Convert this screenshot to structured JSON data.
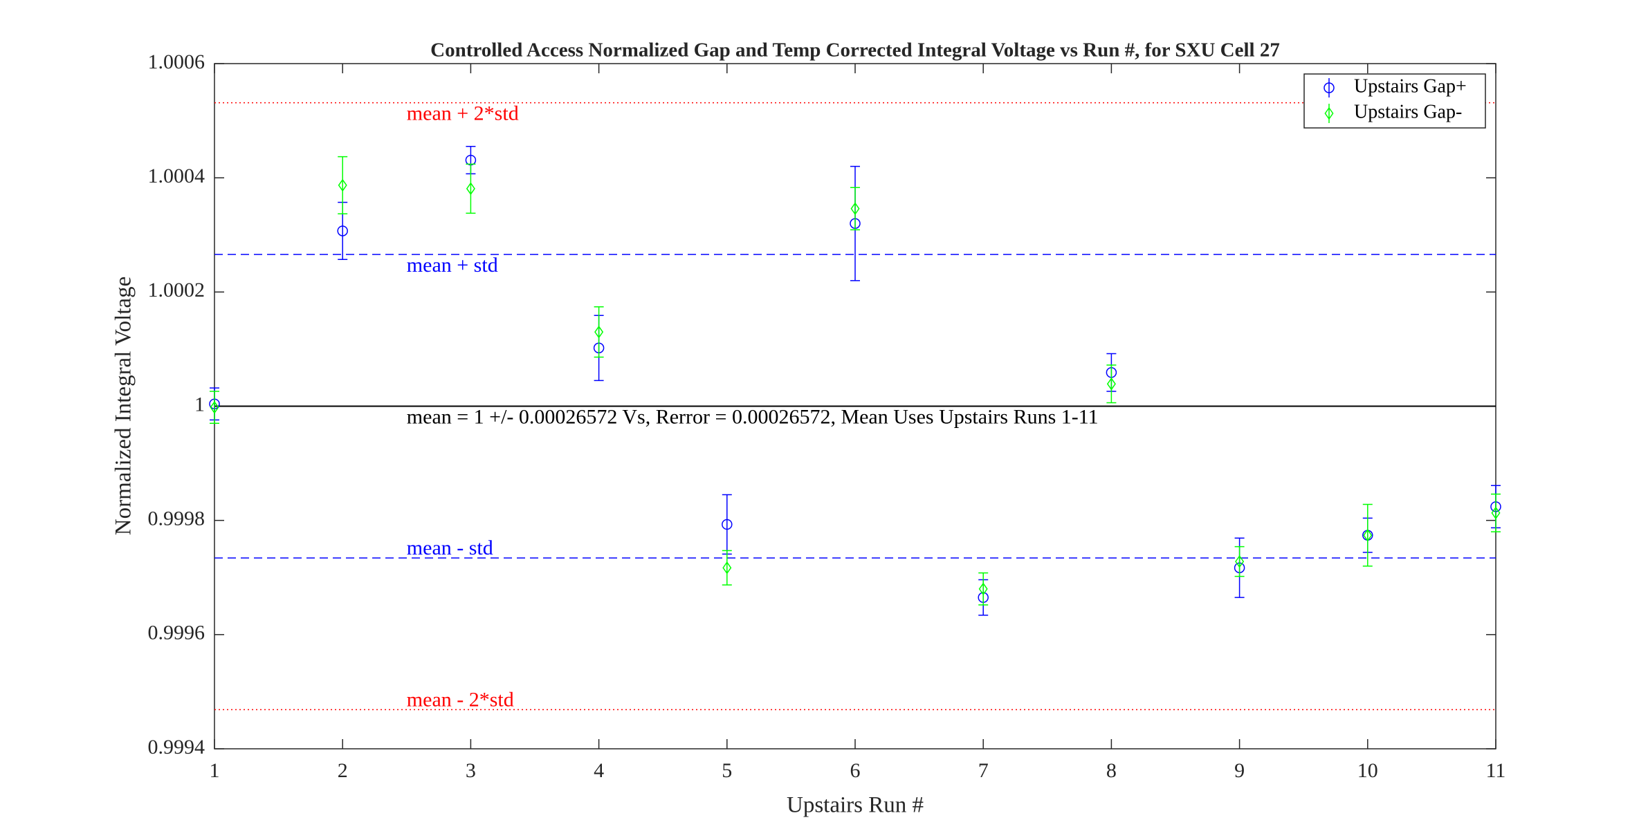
{
  "chart_data": {
    "type": "errorbar",
    "title": "Controlled Access Normalized Gap and Temp Corrected Integral Voltage vs Run #, for SXU Cell 27",
    "x_label": "Upstairs Run #",
    "y_label": "Normalized Integral Voltage",
    "x": [
      1,
      2,
      3,
      4,
      5,
      6,
      7,
      8,
      9,
      10,
      11
    ],
    "xlim": [
      1,
      11
    ],
    "xticks": [
      1,
      2,
      3,
      4,
      5,
      6,
      7,
      8,
      9,
      10,
      11
    ],
    "ylim": [
      0.9994,
      1.0006
    ],
    "yticks": [
      0.9994,
      0.9996,
      0.9998,
      1,
      1.0002,
      1.0004,
      1.0006
    ],
    "legend": "northeast",
    "series": [
      {
        "name": "Upstairs Gap+",
        "color": "#0000ff",
        "marker": "circle",
        "values": [
          1.000004,
          1.000307,
          1.000431,
          1.000102,
          0.999793,
          1.00032,
          0.999665,
          1.000059,
          0.999717,
          0.999774,
          0.999824
        ],
        "errors": [
          2.8e-05,
          5e-05,
          2.4e-05,
          5.7e-05,
          5.2e-05,
          0.0001,
          3.1e-05,
          3.3e-05,
          5.2e-05,
          3e-05,
          3.7e-05
        ]
      },
      {
        "name": "Upstairs Gap-",
        "color": "#00ff00",
        "marker": "diamond",
        "values": [
          0.999998,
          1.000387,
          1.000381,
          1.00013,
          0.999717,
          1.000346,
          0.99968,
          1.000039,
          0.999728,
          0.999774,
          0.999813
        ],
        "errors": [
          2.8e-05,
          5e-05,
          4.3e-05,
          4.4e-05,
          3e-05,
          3.7e-05,
          2.8e-05,
          3.3e-05,
          2.6e-05,
          5.4e-05,
          3.3e-05
        ]
      }
    ],
    "reference_lines": [
      {
        "value": 1,
        "label": "mean = 1 +/- 0.00026572 Vs, Rerror = 0.00026572, Mean Uses Upstairs Runs 1-11",
        "color": "#000000",
        "style": "solid"
      },
      {
        "value": 1.00026572,
        "label": "mean + std",
        "color": "#0000ff",
        "style": "dashed"
      },
      {
        "value": 0.99973428,
        "label": "mean - std",
        "color": "#0000ff",
        "style": "dashed"
      },
      {
        "value": 1.00053144,
        "label": "mean + 2*std",
        "color": "#ff0000",
        "style": "dotted"
      },
      {
        "value": 0.99946856,
        "label": "mean - 2*std",
        "color": "#ff0000",
        "style": "dotted"
      }
    ]
  }
}
